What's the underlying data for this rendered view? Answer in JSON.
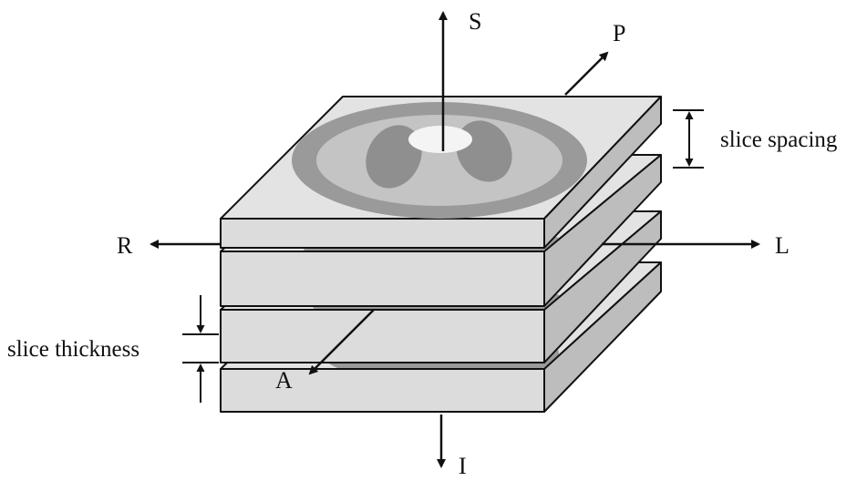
{
  "axes": {
    "superior": "S",
    "inferior": "I",
    "posterior": "P",
    "anterior": "A",
    "right": "R",
    "left": "L"
  },
  "dimensions": {
    "spacing": "slice spacing",
    "thickness": "slice thickness"
  },
  "colors": {
    "slab_top": "#e3e3e3",
    "slab_front": "#dcdcdc",
    "slab_side": "#bdbdbd",
    "ring_dark": "#9a9a9a",
    "ring_light": "#c4c4c4",
    "lung": "#8f8f8f",
    "spine": "#f4f4f4",
    "line": "#111111"
  }
}
